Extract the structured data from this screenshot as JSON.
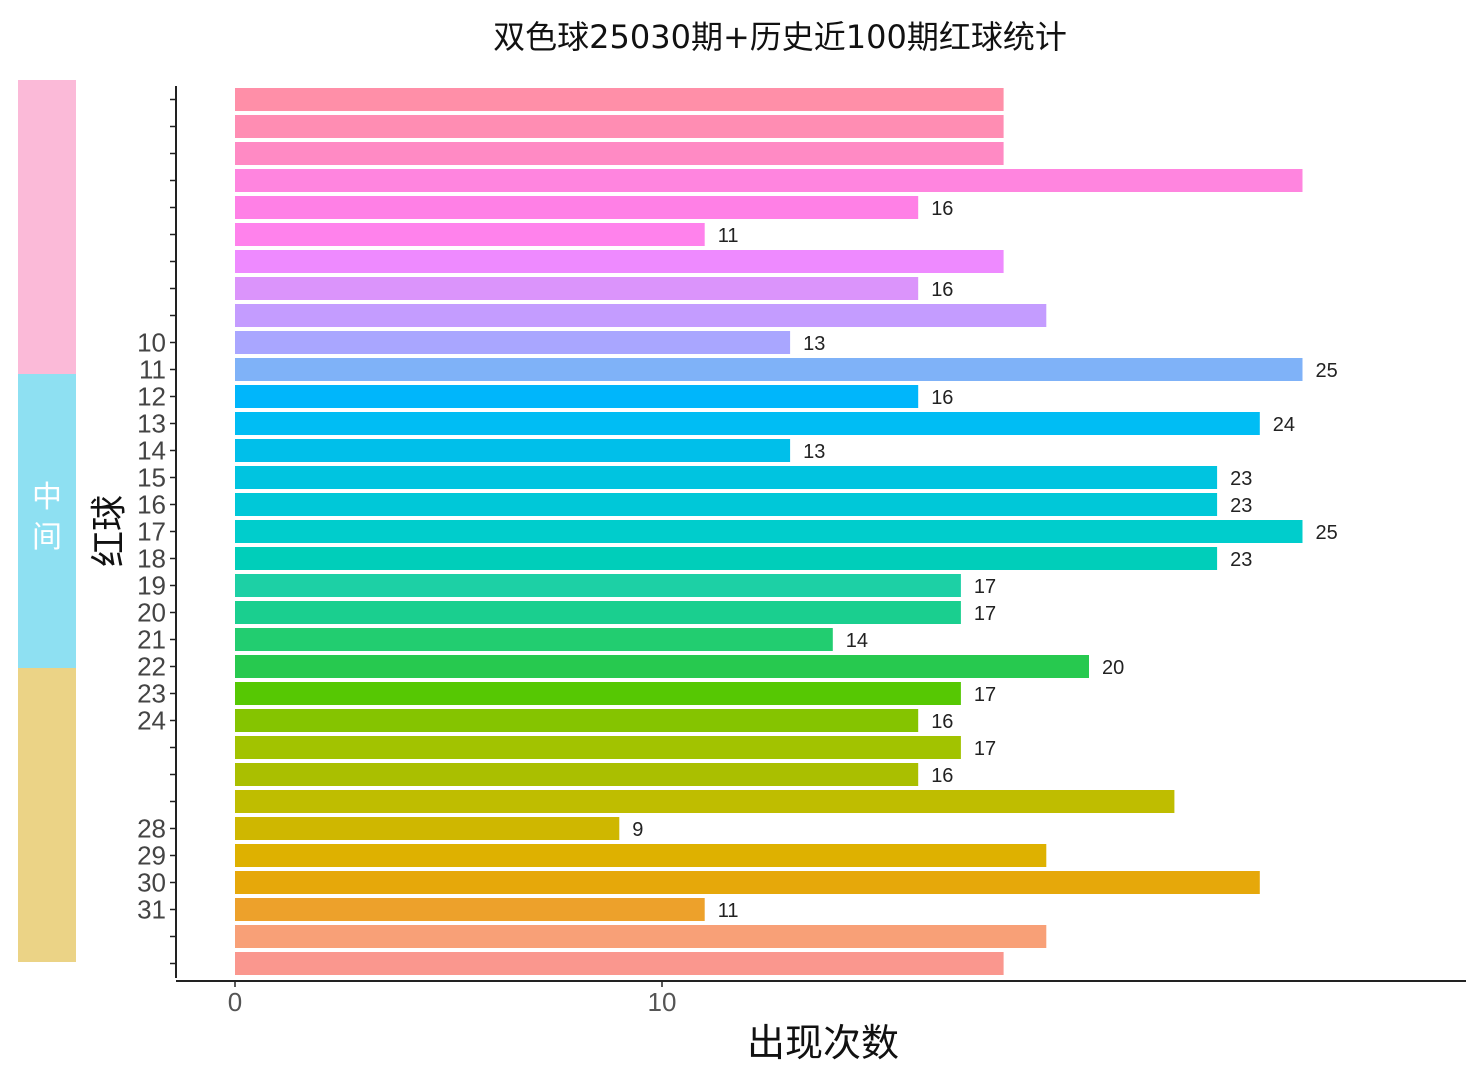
{
  "title": "双色球25030期+历史近100期红球统计",
  "side_panel": {
    "segments": [
      {
        "label": "",
        "color": "#fbbad8"
      },
      {
        "label": "中间",
        "color": "#8ee0f2"
      },
      {
        "label": "",
        "color": "#ebd386"
      }
    ]
  },
  "chart_data": {
    "type": "bar",
    "orientation": "horizontal",
    "title": "双色球25030期+历史近100期红球统计",
    "xlabel": "出现次数",
    "ylabel": "红球",
    "xlim": [
      0,
      29
    ],
    "x_ticks": [
      "0",
      "10"
    ],
    "grid": false,
    "categories": [
      "",
      "",
      "",
      "",
      "",
      "",
      "",
      "",
      "",
      "10",
      "11",
      "12",
      "13",
      "14",
      "15",
      "16",
      "17",
      "18",
      "19",
      "20",
      "21",
      "22",
      "23",
      "24",
      "",
      "",
      "",
      "28",
      "29",
      "30",
      "31",
      "",
      ""
    ],
    "values": [
      18,
      18,
      18,
      25,
      16,
      11,
      18,
      16,
      19,
      13,
      25,
      16,
      24,
      13,
      23,
      23,
      25,
      23,
      17,
      17,
      14,
      20,
      17,
      16,
      17,
      16,
      22,
      9,
      19,
      24,
      11,
      19,
      18
    ],
    "value_labels": [
      "",
      "",
      "",
      "",
      "16",
      "11",
      "",
      "16",
      "",
      "13",
      "25",
      "16",
      "24",
      "13",
      "23",
      "23",
      "25",
      "23",
      "17",
      "17",
      "14",
      "20",
      "17",
      "16",
      "17",
      "16",
      "",
      "9",
      "",
      "",
      "11",
      "",
      ""
    ],
    "colors": [
      "#ff8fa8",
      "#ff8db3",
      "#ff8ac4",
      "#ff85df",
      "#ff80e6",
      "#ff82ec",
      "#ee8aff",
      "#db94fb",
      "#c49cff",
      "#a9a6ff",
      "#7fb2f8",
      "#00b6fb",
      "#00bdf4",
      "#00bfea",
      "#00c4e0",
      "#00c8d8",
      "#00cdcc",
      "#00ceba",
      "#1dd0a5",
      "#1acf8f",
      "#22cd70",
      "#27c94f",
      "#56c803",
      "#85c400",
      "#a2c300",
      "#aabf00",
      "#bfbd00",
      "#cfb700",
      "#deb100",
      "#e6a80a",
      "#eda12b",
      "#f8a077",
      "#fa978e"
    ]
  }
}
